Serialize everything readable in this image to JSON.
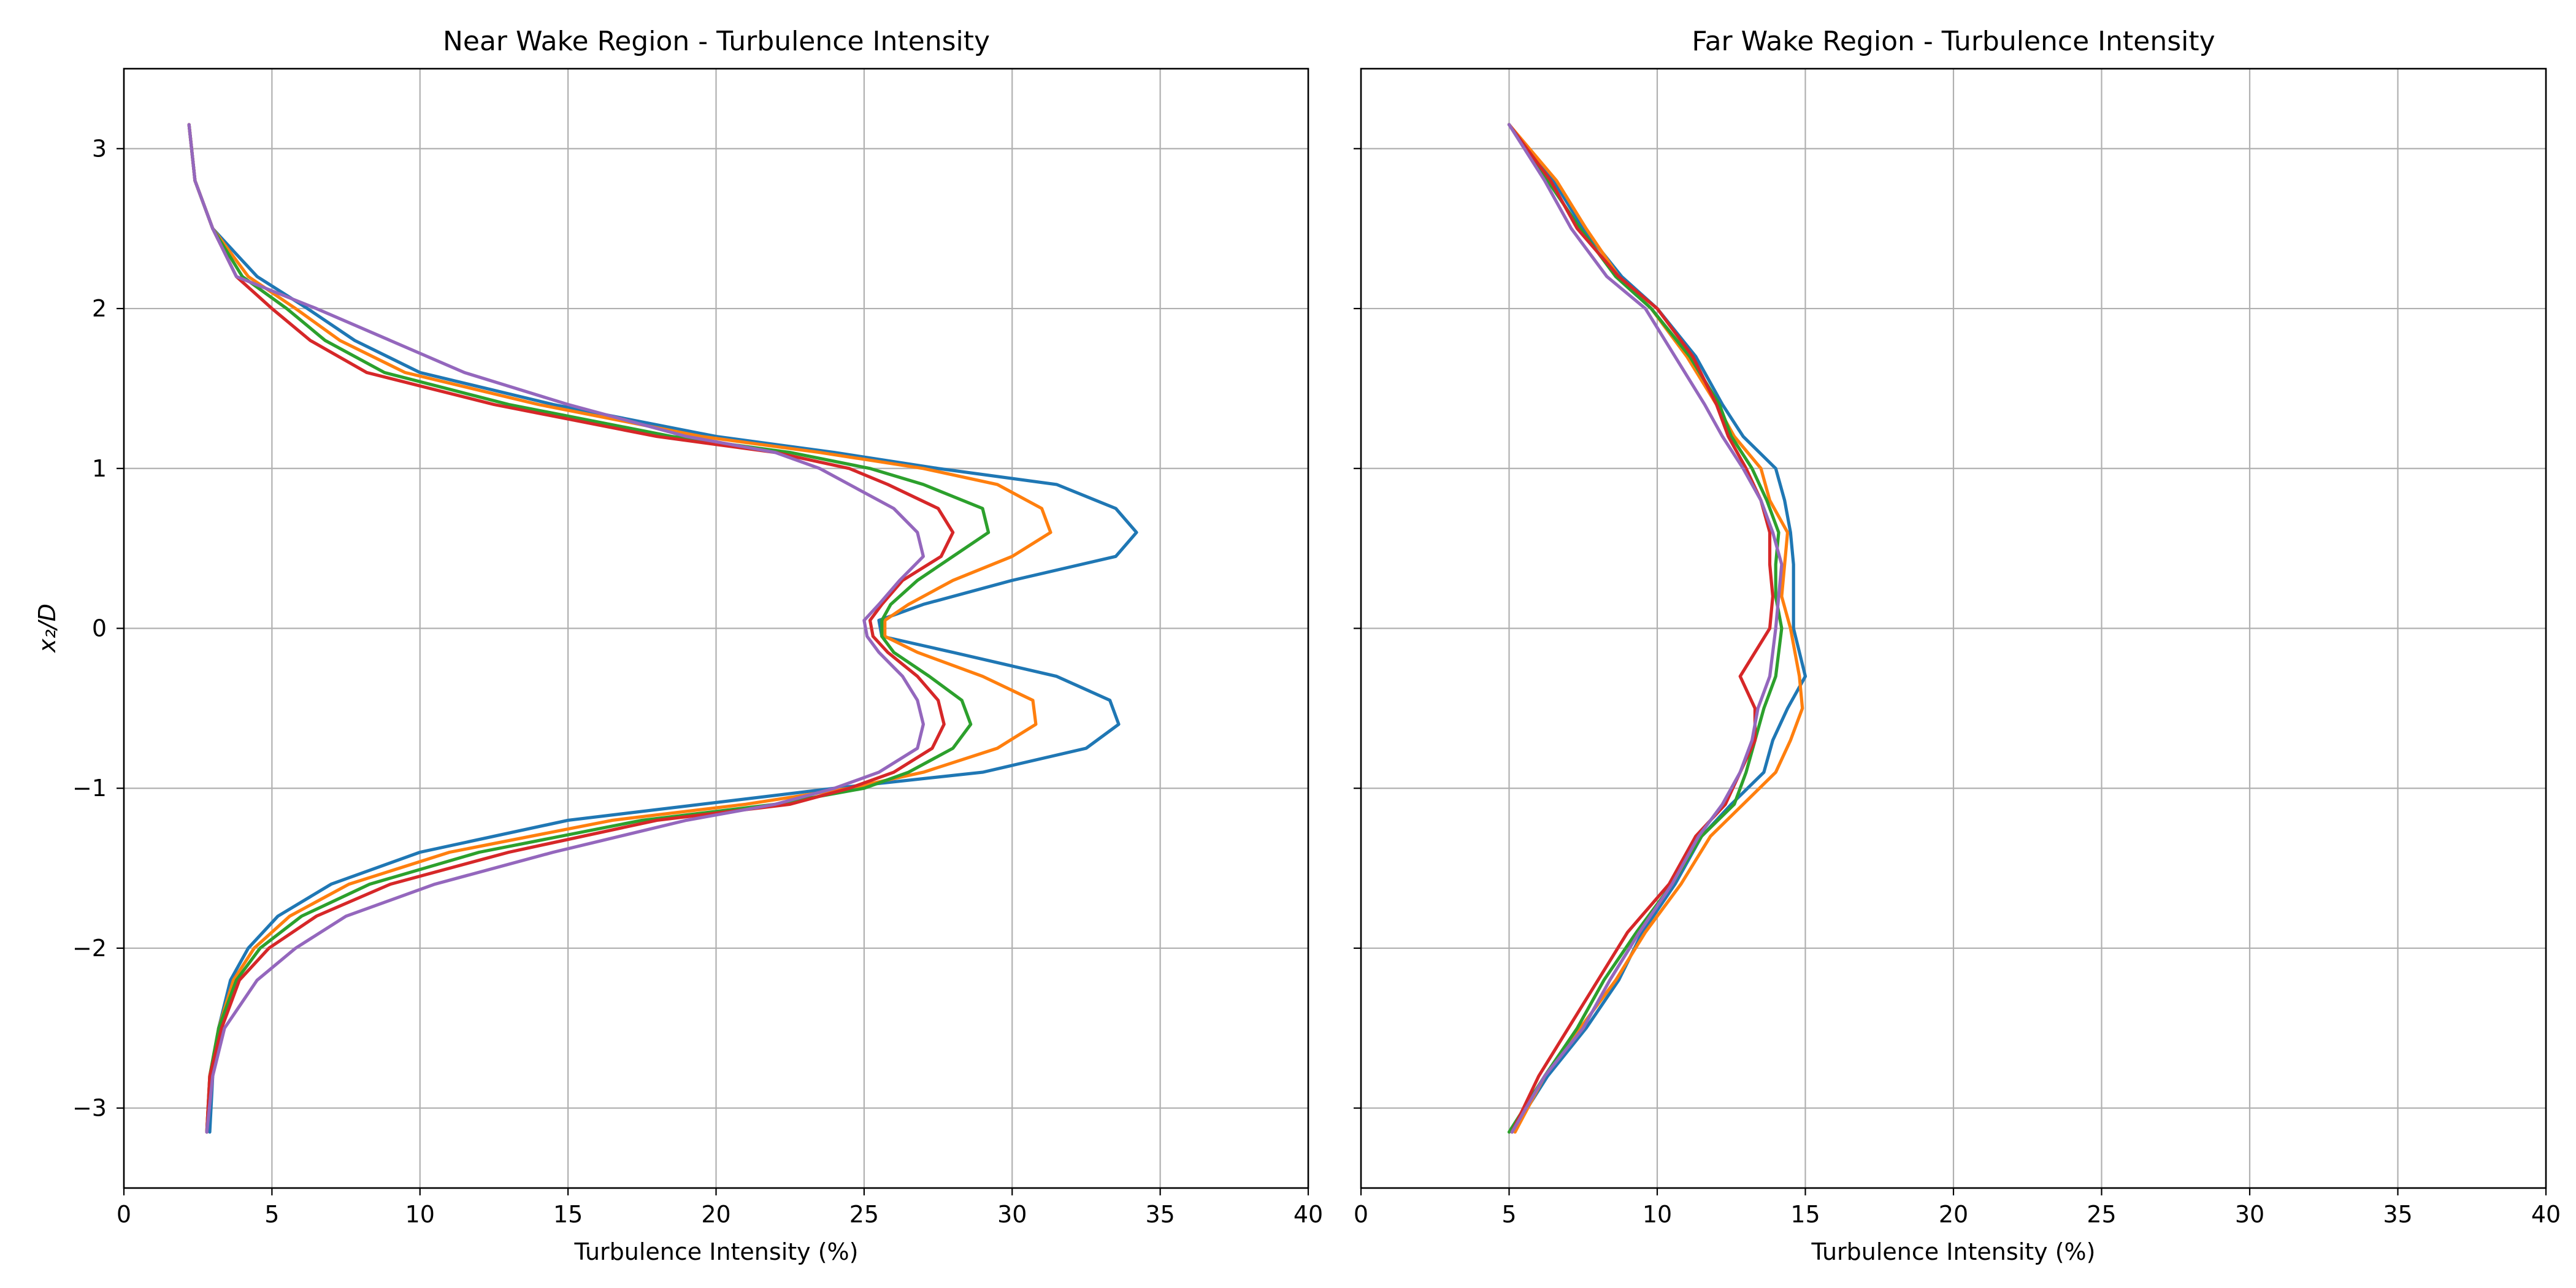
{
  "chart_data": [
    {
      "type": "line",
      "title": "Near Wake Region - Turbulence Intensity",
      "xlabel": "Turbulence Intensity (%)",
      "ylabel": "x₂/D",
      "xlim": [
        0,
        40
      ],
      "ylim": [
        -3.5,
        3.5
      ],
      "xticks": [
        "0",
        "5",
        "10",
        "15",
        "20",
        "25",
        "30",
        "35",
        "40"
      ],
      "yticks": [
        "−3",
        "−2",
        "−1",
        "0",
        "1",
        "2",
        "3"
      ],
      "grid": true,
      "series": [
        {
          "color": "#1f77b4",
          "y": [
            3.15,
            2.8,
            2.5,
            2.2,
            2.0,
            1.8,
            1.6,
            1.4,
            1.2,
            1.1,
            1.0,
            0.9,
            0.75,
            0.6,
            0.45,
            0.3,
            0.15,
            0.05,
            -0.05,
            -0.15,
            -0.3,
            -0.45,
            -0.6,
            -0.75,
            -0.9,
            -1.0,
            -1.1,
            -1.2,
            -1.4,
            -1.6,
            -1.8,
            -2.0,
            -2.2,
            -2.5,
            -2.8,
            -3.15
          ],
          "x": [
            2.2,
            2.4,
            3.0,
            4.5,
            6.2,
            7.8,
            10.0,
            14.5,
            20.0,
            24.0,
            27.5,
            31.5,
            33.5,
            34.2,
            33.5,
            30.0,
            27.0,
            25.5,
            25.6,
            28.0,
            31.5,
            33.3,
            33.6,
            32.5,
            29.0,
            24.0,
            19.5,
            15.0,
            10.0,
            7.0,
            5.2,
            4.2,
            3.6,
            3.2,
            3.0,
            2.9
          ]
        },
        {
          "color": "#ff7f0e",
          "y": [
            3.15,
            2.8,
            2.5,
            2.2,
            2.0,
            1.8,
            1.6,
            1.4,
            1.2,
            1.1,
            1.0,
            0.9,
            0.75,
            0.6,
            0.45,
            0.3,
            0.15,
            0.05,
            -0.05,
            -0.15,
            -0.3,
            -0.45,
            -0.6,
            -0.75,
            -0.9,
            -1.0,
            -1.1,
            -1.2,
            -1.4,
            -1.6,
            -1.8,
            -2.0,
            -2.2,
            -2.5,
            -2.8,
            -3.15
          ],
          "x": [
            2.2,
            2.4,
            3.0,
            4.2,
            5.8,
            7.3,
            9.5,
            14.0,
            19.5,
            23.5,
            27.0,
            29.5,
            31.0,
            31.3,
            30.0,
            28.0,
            26.5,
            25.7,
            25.7,
            26.8,
            29.0,
            30.7,
            30.8,
            29.5,
            27.0,
            24.5,
            21.0,
            16.5,
            11.0,
            7.6,
            5.6,
            4.4,
            3.7,
            3.2,
            2.9,
            2.8
          ]
        },
        {
          "color": "#2ca02c",
          "y": [
            3.15,
            2.8,
            2.5,
            2.2,
            2.0,
            1.8,
            1.6,
            1.4,
            1.2,
            1.1,
            1.0,
            0.9,
            0.75,
            0.6,
            0.45,
            0.3,
            0.15,
            0.05,
            -0.05,
            -0.15,
            -0.3,
            -0.45,
            -0.6,
            -0.75,
            -0.9,
            -1.0,
            -1.1,
            -1.2,
            -1.4,
            -1.6,
            -1.8,
            -2.0,
            -2.2,
            -2.5,
            -2.8,
            -3.15
          ],
          "x": [
            2.2,
            2.4,
            3.0,
            4.0,
            5.5,
            6.8,
            8.8,
            13.0,
            18.5,
            22.5,
            25.2,
            27.0,
            29.0,
            29.2,
            28.0,
            26.8,
            25.9,
            25.6,
            25.6,
            26.0,
            27.2,
            28.3,
            28.6,
            28.0,
            26.5,
            25.0,
            22.0,
            17.5,
            12.0,
            8.3,
            6.0,
            4.6,
            3.8,
            3.2,
            2.9,
            2.8
          ]
        },
        {
          "color": "#d62728",
          "y": [
            3.15,
            2.8,
            2.5,
            2.2,
            2.0,
            1.8,
            1.6,
            1.4,
            1.2,
            1.1,
            1.0,
            0.9,
            0.75,
            0.6,
            0.45,
            0.3,
            0.15,
            0.05,
            -0.05,
            -0.15,
            -0.3,
            -0.45,
            -0.6,
            -0.75,
            -0.9,
            -1.0,
            -1.1,
            -1.2,
            -1.4,
            -1.6,
            -1.8,
            -2.0,
            -2.2,
            -2.5,
            -2.8,
            -3.15
          ],
          "x": [
            2.2,
            2.4,
            3.0,
            3.8,
            5.0,
            6.3,
            8.2,
            12.5,
            18.0,
            22.0,
            24.5,
            25.8,
            27.5,
            28.0,
            27.6,
            26.3,
            25.6,
            25.2,
            25.3,
            25.8,
            26.8,
            27.5,
            27.7,
            27.3,
            26.0,
            24.5,
            22.5,
            18.0,
            13.0,
            9.0,
            6.5,
            4.9,
            3.9,
            3.3,
            2.9,
            2.8
          ]
        },
        {
          "color": "#9467bd",
          "y": [
            3.15,
            2.8,
            2.5,
            2.2,
            2.0,
            1.8,
            1.6,
            1.4,
            1.2,
            1.1,
            1.0,
            0.9,
            0.75,
            0.6,
            0.45,
            0.3,
            0.15,
            0.05,
            -0.05,
            -0.15,
            -0.3,
            -0.45,
            -0.6,
            -0.75,
            -0.9,
            -1.0,
            -1.1,
            -1.2,
            -1.4,
            -1.6,
            -1.8,
            -2.0,
            -2.2,
            -2.5,
            -2.8,
            -3.15
          ],
          "x": [
            2.2,
            2.4,
            3.0,
            3.8,
            6.5,
            9.0,
            11.5,
            15.0,
            19.0,
            22.0,
            23.5,
            24.5,
            26.0,
            26.8,
            27.0,
            26.2,
            25.5,
            25.0,
            25.1,
            25.5,
            26.3,
            26.8,
            27.0,
            26.8,
            25.5,
            24.0,
            22.0,
            19.0,
            14.5,
            10.5,
            7.5,
            5.8,
            4.5,
            3.4,
            3.0,
            2.8
          ]
        }
      ]
    },
    {
      "type": "line",
      "title": "Far Wake Region - Turbulence Intensity",
      "xlabel": "Turbulence Intensity (%)",
      "ylabel": "",
      "xlim": [
        0,
        40
      ],
      "ylim": [
        -3.5,
        3.5
      ],
      "xticks": [
        "0",
        "5",
        "10",
        "15",
        "20",
        "25",
        "30",
        "35",
        "40"
      ],
      "yticks": [],
      "grid": true,
      "series": [
        {
          "color": "#1f77b4",
          "y": [
            3.15,
            2.8,
            2.5,
            2.2,
            2.0,
            1.7,
            1.4,
            1.2,
            1.0,
            0.8,
            0.6,
            0.4,
            0.2,
            0.0,
            -0.3,
            -0.5,
            -0.7,
            -0.9,
            -1.1,
            -1.3,
            -1.6,
            -1.9,
            -2.2,
            -2.5,
            -2.8,
            -3.15
          ],
          "x": [
            5.0,
            6.5,
            7.5,
            8.8,
            10.0,
            11.3,
            12.2,
            12.9,
            14.0,
            14.3,
            14.5,
            14.6,
            14.6,
            14.6,
            15.0,
            14.4,
            13.9,
            13.6,
            12.5,
            11.5,
            10.6,
            9.5,
            8.7,
            7.6,
            6.3,
            5.1
          ]
        },
        {
          "color": "#ff7f0e",
          "y": [
            3.15,
            2.8,
            2.5,
            2.2,
            2.0,
            1.7,
            1.4,
            1.2,
            1.0,
            0.8,
            0.6,
            0.4,
            0.2,
            0.0,
            -0.3,
            -0.5,
            -0.7,
            -0.9,
            -1.1,
            -1.3,
            -1.6,
            -1.9,
            -2.2,
            -2.5,
            -2.8,
            -3.15
          ],
          "x": [
            5.0,
            6.6,
            7.6,
            8.7,
            9.8,
            11.0,
            12.0,
            12.6,
            13.5,
            13.8,
            14.4,
            14.3,
            14.2,
            14.5,
            14.8,
            14.9,
            14.5,
            14.0,
            12.9,
            11.8,
            10.8,
            9.6,
            8.6,
            7.4,
            6.2,
            5.2
          ]
        },
        {
          "color": "#2ca02c",
          "y": [
            3.15,
            2.8,
            2.5,
            2.2,
            2.0,
            1.7,
            1.4,
            1.2,
            1.0,
            0.8,
            0.6,
            0.4,
            0.2,
            0.0,
            -0.3,
            -0.5,
            -0.7,
            -0.9,
            -1.1,
            -1.3,
            -1.6,
            -1.9,
            -2.2,
            -2.5,
            -2.8,
            -3.15
          ],
          "x": [
            5.0,
            6.3,
            7.4,
            8.6,
            9.8,
            11.1,
            12.1,
            12.5,
            13.2,
            13.7,
            14.1,
            14.0,
            14.0,
            14.2,
            14.0,
            13.6,
            13.3,
            13.0,
            12.6,
            11.5,
            10.5,
            9.3,
            8.2,
            7.3,
            6.2,
            5.0
          ]
        },
        {
          "color": "#d62728",
          "y": [
            3.15,
            2.8,
            2.5,
            2.2,
            2.0,
            1.7,
            1.4,
            1.2,
            1.0,
            0.8,
            0.6,
            0.4,
            0.2,
            0.0,
            -0.3,
            -0.5,
            -0.7,
            -0.9,
            -1.1,
            -1.3,
            -1.6,
            -1.9,
            -2.2,
            -2.5,
            -2.8,
            -3.15
          ],
          "x": [
            5.0,
            6.4,
            7.3,
            8.7,
            10.0,
            11.2,
            12.0,
            12.4,
            13.0,
            13.5,
            13.8,
            13.8,
            13.9,
            13.8,
            12.8,
            13.3,
            13.3,
            12.8,
            12.3,
            11.3,
            10.4,
            9.0,
            8.0,
            7.0,
            6.0,
            5.1
          ]
        },
        {
          "color": "#9467bd",
          "y": [
            3.15,
            2.8,
            2.5,
            2.2,
            2.0,
            1.7,
            1.4,
            1.2,
            1.0,
            0.8,
            0.6,
            0.4,
            0.2,
            0.0,
            -0.3,
            -0.5,
            -0.7,
            -0.9,
            -1.1,
            -1.3,
            -1.6,
            -1.9,
            -2.2,
            -2.5,
            -2.8,
            -3.15
          ],
          "x": [
            5.0,
            6.2,
            7.1,
            8.3,
            9.6,
            10.6,
            11.6,
            12.2,
            12.9,
            13.5,
            13.9,
            14.2,
            14.1,
            14.0,
            13.8,
            13.4,
            13.2,
            12.8,
            12.2,
            11.4,
            10.5,
            9.4,
            8.4,
            7.5,
            6.2,
            5.1
          ]
        }
      ]
    }
  ]
}
